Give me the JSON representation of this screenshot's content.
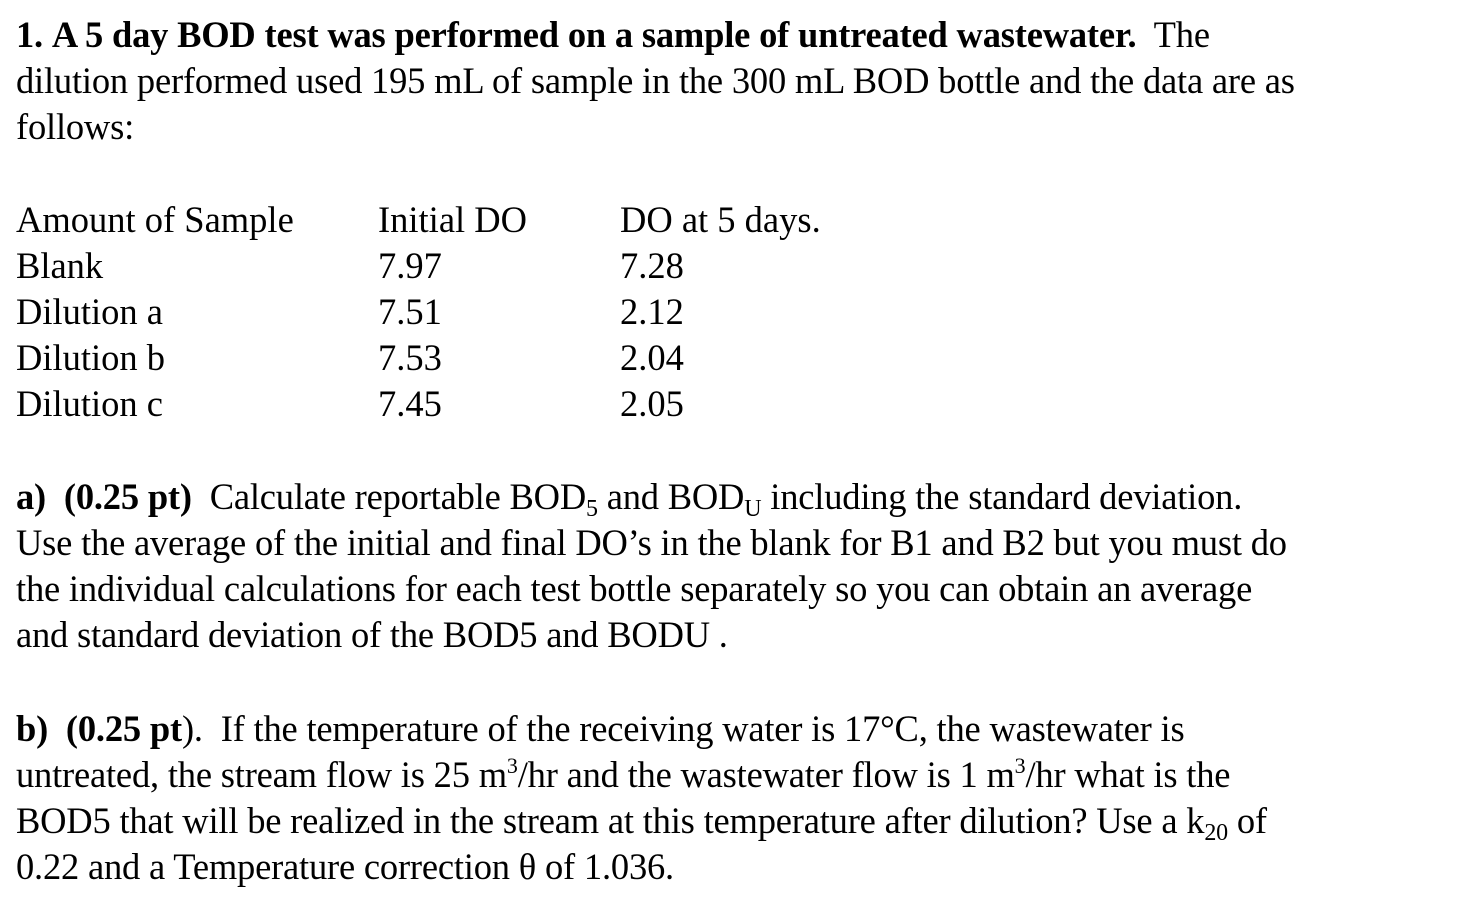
{
  "problem": {
    "number": "1.",
    "title_bold": "A 5 day BOD test was performed on a sample of untreated wastewater.",
    "intro_line1_rest": "The",
    "intro_line2": "dilution performed used 195 mL of sample in the 300 mL BOD bottle and the data are as",
    "intro_line3": "follows:"
  },
  "table": {
    "headers": [
      "Amount of Sample",
      "Initial DO",
      "DO at 5 days."
    ],
    "rows": [
      {
        "sample": "Blank",
        "initial_do": "7.97",
        "do_5_days": "7.28"
      },
      {
        "sample": "Dilution a",
        "initial_do": "7.51",
        "do_5_days": "2.12"
      },
      {
        "sample": "Dilution b",
        "initial_do": "7.53",
        "do_5_days": "2.04"
      },
      {
        "sample": "Dilution c",
        "initial_do": "7.45",
        "do_5_days": "2.05"
      }
    ]
  },
  "part_a": {
    "label": "a)",
    "points": "(0.25 pt)",
    "l1_pre": "Calculate reportable BOD",
    "l1_sub1": "5",
    "l1_mid": " and BOD",
    "l1_sub2": "U",
    "l1_post": " including the standard deviation.",
    "line2": "Use the average of the initial and final DO’s in the blank for B1 and B2 but you must do",
    "line3": "the individual calculations for each test bottle separately so you can obtain an average",
    "line4": "and standard deviation of the BOD5 and BODU ."
  },
  "part_b": {
    "label": "b)",
    "points": "(0.25 pt",
    "points_close": ").",
    "l1_post": "If the temperature of the receiving water is 17°C, the wastewater is",
    "l2_pre": "untreated, the stream flow is 25 m",
    "l2_sup1": "3",
    "l2_mid": "/hr and the wastewater flow is 1 m",
    "l2_sup2": "3",
    "l2_post": "/hr what is the",
    "l3_pre": "BOD5 that will be realized in the stream at this temperature after dilution? Use a k",
    "l3_sub": "20",
    "l3_post": " of",
    "line4": "0.22 and a Temperature correction θ of 1.036."
  }
}
